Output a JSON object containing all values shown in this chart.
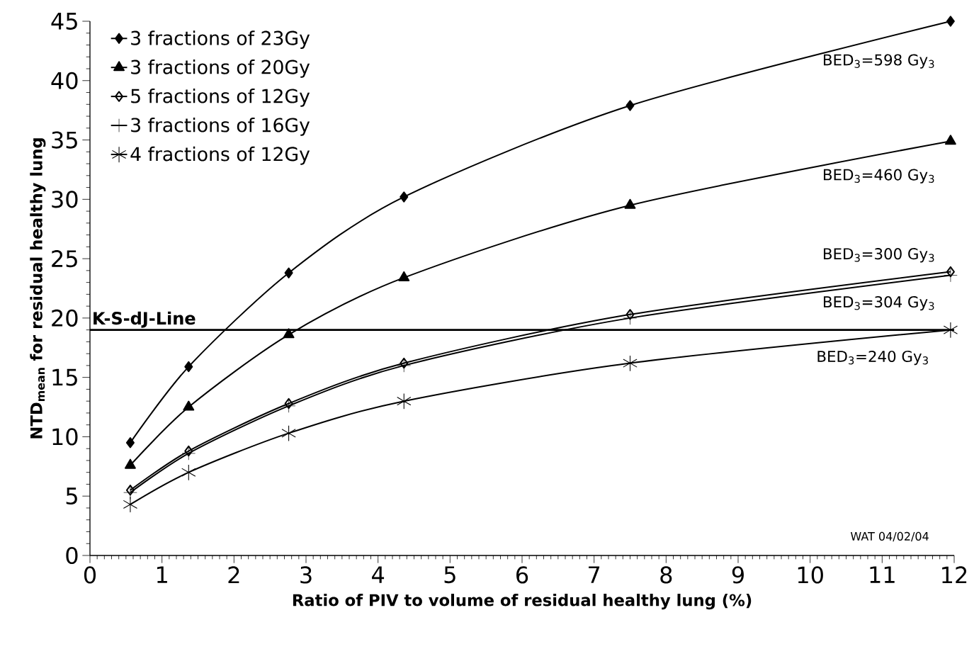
{
  "chart_data": {
    "type": "line",
    "xlabel": "Ratio of PIV to volume of residual healthy lung (%)",
    "ylabel": "NTD$_{mean}$ for residual healthy lung",
    "x": [
      0.56,
      1.37,
      2.76,
      4.36,
      7.5,
      11.95
    ],
    "series": [
      {
        "name": "3 fractions of 23Gy",
        "color": "#000000",
        "marker": "diamond",
        "values": [
          9.5,
          15.9,
          23.8,
          30.2,
          37.9,
          45
        ]
      },
      {
        "name": "3 fractions of 20Gy",
        "color": "#000000",
        "marker": "triangle",
        "values": [
          7.6,
          12.5,
          18.6,
          23.4,
          29.5,
          34.9
        ]
      },
      {
        "name": "5 fractions of 12Gy",
        "color": "#000000",
        "marker": "diamond",
        "values": [
          5.5,
          8.8,
          12.8,
          16.2,
          20.3,
          23.9
        ]
      },
      {
        "name": "3 fractions of 16Gy",
        "color": "#000000",
        "marker": "cross",
        "values": [
          5.3,
          8.6,
          12.6,
          16.0,
          20.0,
          23.6
        ]
      },
      {
        "name": "4 fractions of 12Gy",
        "color": "#000000",
        "marker": "cross",
        "values": [
          4.3,
          7.0,
          10.3,
          13.0,
          16.2,
          19.0
        ]
      }
    ],
    "xlim": [
      0,
      12
    ],
    "ylim": [
      0,
      45
    ],
    "xticks": [
      0,
      1,
      2,
      3,
      4,
      5,
      6,
      7,
      8,
      9,
      10,
      11,
      12
    ],
    "yticks": [
      0,
      5,
      10,
      15,
      20,
      25,
      30,
      35,
      40,
      45
    ],
    "grid": false,
    "legend": "top left",
    "line_style": "solid",
    "ref_lines": [
      {
        "axis": "y",
        "value": 19,
        "label": "K-S-dJ-Line",
        "color": "#000000"
      }
    ],
    "annotations": [
      "BED$_{3}$=598 Gy$_{3}$",
      "BED$_{3}$=460 Gy$_{3}$",
      "BED$_{3}$=300 Gy$_{3}$",
      "BED$_{3}$=304 Gy$_{3}$",
      "BED$_{3}$=240 Gy$_{3}$",
      "WAT 04/02/04"
    ]
  }
}
